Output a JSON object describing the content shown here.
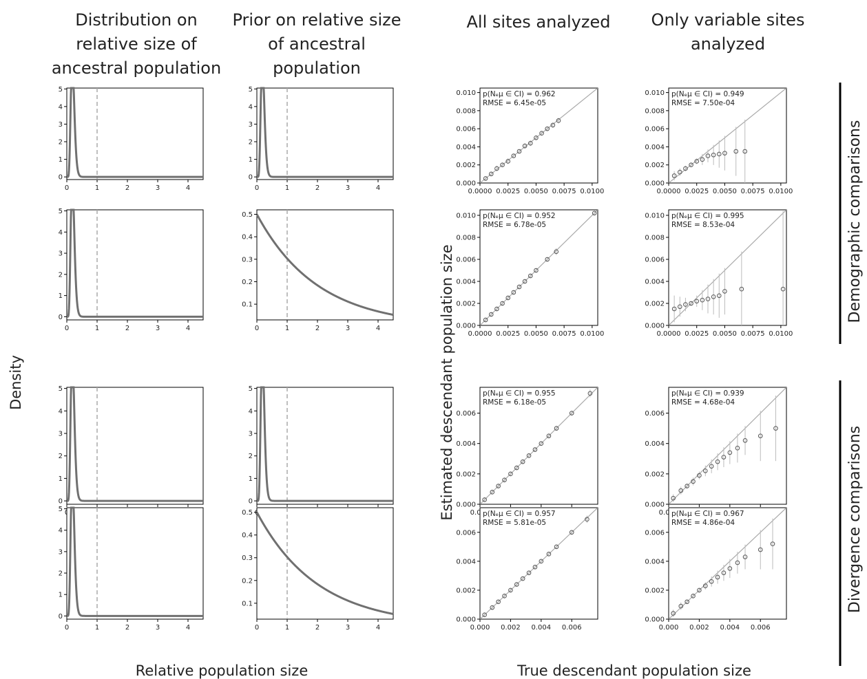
{
  "column_titles": [
    [
      "Distribution on",
      "relative size of",
      "ancestral population"
    ],
    [
      "Prior on relative size",
      "of ancestral",
      "population"
    ],
    [
      "All sites analyzed"
    ],
    [
      "Only variable sites",
      "analyzed"
    ]
  ],
  "row_group_labels": [
    "Demographic comparisons",
    "Divergence comparisons"
  ],
  "axis_labels": {
    "density": "Density",
    "relative_population_size": "Relative population size",
    "estimated_descendant": "Estimated descendant population size",
    "true_descendant": "True descendant population size"
  },
  "annotation_label": "p(Nₑμ ∈ CI) = ",
  "rmse_label": "RMSE = ",
  "colors": {
    "density_line": "#707070",
    "reference_line": "#aaaaaa",
    "scatter_marker": "#555555",
    "error_bar": "#bbbbbb",
    "identity_line": "#aaaaaa"
  },
  "chart_data": [
    {
      "type": "line",
      "id": "dist-r1",
      "distribution": "gamma",
      "shape": 10,
      "scale": 0.02,
      "xlim": [
        0,
        4.5
      ],
      "ylim": [
        -0.15,
        5.05
      ],
      "xticks": [
        0,
        1,
        2,
        3,
        4
      ],
      "yticks": [
        0,
        1,
        2,
        3,
        4,
        5
      ],
      "reference_x": 1
    },
    {
      "type": "line",
      "id": "prior-r1",
      "distribution": "gamma",
      "shape": 10,
      "scale": 0.02,
      "xlim": [
        0,
        4.5
      ],
      "ylim": [
        -0.15,
        5.05
      ],
      "xticks": [
        0,
        1,
        2,
        3,
        4
      ],
      "yticks": [
        0,
        1,
        2,
        3,
        4,
        5
      ],
      "reference_x": 1
    },
    {
      "type": "line",
      "id": "dist-r2",
      "distribution": "gamma",
      "shape": 10,
      "scale": 0.02,
      "xlim": [
        0,
        4.5
      ],
      "ylim": [
        -0.15,
        5.05
      ],
      "xticks": [
        0,
        1,
        2,
        3,
        4
      ],
      "yticks": [
        0,
        1,
        2,
        3,
        4,
        5
      ],
      "reference_x": 1
    },
    {
      "type": "line",
      "id": "prior-r2",
      "distribution": "exponential",
      "mean": 2.0,
      "xlim": [
        0,
        4.5
      ],
      "ylim": [
        0.03,
        0.52
      ],
      "xticks": [
        0,
        1,
        2,
        3,
        4
      ],
      "yticks": [
        0.1,
        0.2,
        0.3,
        0.4,
        0.5
      ],
      "reference_x": 1
    },
    {
      "type": "line",
      "id": "dist-r3",
      "distribution": "gamma",
      "shape": 10,
      "scale": 0.02,
      "xlim": [
        0,
        4.5
      ],
      "ylim": [
        -0.15,
        5.05
      ],
      "xticks": [
        0,
        1,
        2,
        3,
        4
      ],
      "yticks": [
        0,
        1,
        2,
        3,
        4,
        5
      ],
      "reference_x": 1
    },
    {
      "type": "line",
      "id": "prior-r3",
      "distribution": "gamma",
      "shape": 10,
      "scale": 0.02,
      "xlim": [
        0,
        4.5
      ],
      "ylim": [
        -0.15,
        5.05
      ],
      "xticks": [
        0,
        1,
        2,
        3,
        4
      ],
      "yticks": [
        0,
        1,
        2,
        3,
        4,
        5
      ],
      "reference_x": 1
    },
    {
      "type": "line",
      "id": "dist-r4",
      "distribution": "gamma",
      "shape": 10,
      "scale": 0.02,
      "xlim": [
        0,
        4.5
      ],
      "ylim": [
        -0.15,
        5.05
      ],
      "xticks": [
        0,
        1,
        2,
        3,
        4
      ],
      "yticks": [
        0,
        1,
        2,
        3,
        4,
        5
      ],
      "reference_x": 1
    },
    {
      "type": "line",
      "id": "prior-r4",
      "distribution": "exponential",
      "mean": 2.0,
      "xlim": [
        0,
        4.5
      ],
      "ylim": [
        0.03,
        0.52
      ],
      "xticks": [
        0,
        1,
        2,
        3,
        4
      ],
      "yticks": [
        0.1,
        0.2,
        0.3,
        0.4,
        0.5
      ],
      "reference_x": 1
    },
    {
      "type": "scatter",
      "id": "all-r1",
      "lim": [
        0,
        0.0105
      ],
      "ticks": [
        0,
        0.0025,
        0.005,
        0.0075,
        0.01
      ],
      "yticks": [
        0,
        0.002,
        0.004,
        0.006,
        0.008,
        0.01
      ],
      "xtick_labels": [
        "0.0000",
        "0.0025",
        "0.0050",
        "0.0075",
        "0.0100"
      ],
      "ytick_labels": [
        "0.000",
        "0.002",
        "0.004",
        "0.006",
        "0.008",
        "0.010"
      ],
      "coverage": "0.962",
      "rmse": "6.45e-05",
      "points": [
        [
          0.0005,
          0.0005
        ],
        [
          0.001,
          0.001
        ],
        [
          0.0015,
          0.0016
        ],
        [
          0.002,
          0.002
        ],
        [
          0.0025,
          0.0024
        ],
        [
          0.003,
          0.003
        ],
        [
          0.0035,
          0.0035
        ],
        [
          0.004,
          0.0041
        ],
        [
          0.0045,
          0.0044
        ],
        [
          0.005,
          0.005
        ],
        [
          0.0055,
          0.0055
        ],
        [
          0.006,
          0.006
        ],
        [
          0.0065,
          0.0064
        ],
        [
          0.007,
          0.0069
        ]
      ]
    },
    {
      "type": "scatter",
      "id": "var-r1",
      "lim": [
        0,
        0.0105
      ],
      "ticks": [
        0,
        0.0025,
        0.005,
        0.0075,
        0.01
      ],
      "yticks": [
        0,
        0.002,
        0.004,
        0.006,
        0.008,
        0.01
      ],
      "xtick_labels": [
        "0.0000",
        "0.0025",
        "0.0050",
        "0.0075",
        "0.0100"
      ],
      "ytick_labels": [
        "0.000",
        "0.002",
        "0.004",
        "0.006",
        "0.008",
        "0.010"
      ],
      "coverage": "0.949",
      "rmse": "7.50e-04",
      "points": [
        [
          0.0005,
          0.0008
        ],
        [
          0.001,
          0.0012
        ],
        [
          0.0015,
          0.0016
        ],
        [
          0.002,
          0.002
        ],
        [
          0.0025,
          0.0024
        ],
        [
          0.003,
          0.0026
        ],
        [
          0.0035,
          0.003
        ],
        [
          0.004,
          0.0031
        ],
        [
          0.0045,
          0.0032
        ],
        [
          0.005,
          0.0033
        ],
        [
          0.006,
          0.0035
        ],
        [
          0.0068,
          0.0035
        ]
      ]
    },
    {
      "type": "scatter",
      "id": "all-r2",
      "lim": [
        0,
        0.0105
      ],
      "ticks": [
        0,
        0.0025,
        0.005,
        0.0075,
        0.01
      ],
      "yticks": [
        0,
        0.002,
        0.004,
        0.006,
        0.008,
        0.01
      ],
      "xtick_labels": [
        "0.0000",
        "0.0025",
        "0.0050",
        "0.0075",
        "0.0100"
      ],
      "ytick_labels": [
        "0.000",
        "0.002",
        "0.004",
        "0.006",
        "0.008",
        "0.010"
      ],
      "coverage": "0.952",
      "rmse": "6.78e-05",
      "points": [
        [
          0.0005,
          0.0005
        ],
        [
          0.001,
          0.001
        ],
        [
          0.0015,
          0.0015
        ],
        [
          0.002,
          0.002
        ],
        [
          0.0025,
          0.0025
        ],
        [
          0.003,
          0.003
        ],
        [
          0.0035,
          0.0035
        ],
        [
          0.004,
          0.004
        ],
        [
          0.0045,
          0.0045
        ],
        [
          0.005,
          0.005
        ],
        [
          0.006,
          0.006
        ],
        [
          0.0068,
          0.0067
        ],
        [
          0.0102,
          0.0102
        ]
      ]
    },
    {
      "type": "scatter",
      "id": "var-r2",
      "lim": [
        0,
        0.0105
      ],
      "ticks": [
        0,
        0.0025,
        0.005,
        0.0075,
        0.01
      ],
      "yticks": [
        0,
        0.002,
        0.004,
        0.006,
        0.008,
        0.01
      ],
      "xtick_labels": [
        "0.0000",
        "0.0025",
        "0.0050",
        "0.0075",
        "0.0100"
      ],
      "ytick_labels": [
        "0.000",
        "0.002",
        "0.004",
        "0.006",
        "0.008",
        "0.010"
      ],
      "coverage": "0.995",
      "rmse": "8.53e-04",
      "points": [
        [
          0.0005,
          0.0015
        ],
        [
          0.001,
          0.0017
        ],
        [
          0.0015,
          0.0019
        ],
        [
          0.002,
          0.002
        ],
        [
          0.0025,
          0.0022
        ],
        [
          0.003,
          0.0023
        ],
        [
          0.0035,
          0.0024
        ],
        [
          0.004,
          0.0026
        ],
        [
          0.0045,
          0.0027
        ],
        [
          0.005,
          0.0031
        ],
        [
          0.0065,
          0.0033
        ],
        [
          0.0102,
          0.0033
        ]
      ]
    },
    {
      "type": "scatter",
      "id": "all-r3",
      "lim": [
        0,
        0.0077
      ],
      "ticks": [
        0,
        0.002,
        0.004,
        0.006
      ],
      "yticks": [
        0,
        0.002,
        0.004,
        0.006
      ],
      "xtick_labels": [
        "0.000",
        "0.002",
        "0.004",
        "0.006"
      ],
      "ytick_labels": [
        "0.000",
        "0.002",
        "0.004",
        "0.006"
      ],
      "coverage": "0.955",
      "rmse": "6.18e-05",
      "points": [
        [
          0.0003,
          0.0003
        ],
        [
          0.0008,
          0.0008
        ],
        [
          0.0012,
          0.0012
        ],
        [
          0.0016,
          0.0016
        ],
        [
          0.002,
          0.002
        ],
        [
          0.0024,
          0.0024
        ],
        [
          0.0028,
          0.0028
        ],
        [
          0.0032,
          0.0032
        ],
        [
          0.0036,
          0.0036
        ],
        [
          0.004,
          0.004
        ],
        [
          0.0045,
          0.0045
        ],
        [
          0.005,
          0.005
        ],
        [
          0.006,
          0.006
        ],
        [
          0.0072,
          0.0073
        ]
      ]
    },
    {
      "type": "scatter",
      "id": "var-r3",
      "lim": [
        0,
        0.0077
      ],
      "ticks": [
        0,
        0.002,
        0.004,
        0.006
      ],
      "yticks": [
        0,
        0.002,
        0.004,
        0.006
      ],
      "xtick_labels": [
        "0.000",
        "0.002",
        "0.004",
        "0.006"
      ],
      "ytick_labels": [
        "0.000",
        "0.002",
        "0.004",
        "0.006"
      ],
      "coverage": "0.939",
      "rmse": "4.68e-04",
      "points": [
        [
          0.0003,
          0.0004
        ],
        [
          0.0008,
          0.0009
        ],
        [
          0.0012,
          0.0012
        ],
        [
          0.0016,
          0.0015
        ],
        [
          0.002,
          0.0019
        ],
        [
          0.0024,
          0.0022
        ],
        [
          0.0028,
          0.0025
        ],
        [
          0.0032,
          0.0028
        ],
        [
          0.0036,
          0.0031
        ],
        [
          0.004,
          0.0034
        ],
        [
          0.0045,
          0.0037
        ],
        [
          0.005,
          0.0042
        ],
        [
          0.006,
          0.0045
        ],
        [
          0.007,
          0.005
        ]
      ]
    },
    {
      "type": "scatter",
      "id": "all-r4",
      "lim": [
        0,
        0.0077
      ],
      "ticks": [
        0,
        0.002,
        0.004,
        0.006
      ],
      "yticks": [
        0,
        0.002,
        0.004,
        0.006
      ],
      "xtick_labels": [
        "0.000",
        "0.002",
        "0.004",
        "0.006"
      ],
      "ytick_labels": [
        "0.000",
        "0.002",
        "0.004",
        "0.006"
      ],
      "coverage": "0.957",
      "rmse": "5.81e-05",
      "points": [
        [
          0.0003,
          0.0003
        ],
        [
          0.0008,
          0.0008
        ],
        [
          0.0012,
          0.0012
        ],
        [
          0.0016,
          0.0016
        ],
        [
          0.002,
          0.002
        ],
        [
          0.0024,
          0.0024
        ],
        [
          0.0028,
          0.0028
        ],
        [
          0.0032,
          0.0032
        ],
        [
          0.0036,
          0.0036
        ],
        [
          0.004,
          0.004
        ],
        [
          0.0045,
          0.0045
        ],
        [
          0.005,
          0.005
        ],
        [
          0.006,
          0.006
        ],
        [
          0.007,
          0.0069
        ]
      ]
    },
    {
      "type": "scatter",
      "id": "var-r4",
      "lim": [
        0,
        0.0077
      ],
      "ticks": [
        0,
        0.002,
        0.004,
        0.006
      ],
      "yticks": [
        0,
        0.002,
        0.004,
        0.006
      ],
      "xtick_labels": [
        "0.000",
        "0.002",
        "0.004",
        "0.006"
      ],
      "ytick_labels": [
        "0.000",
        "0.002",
        "0.004",
        "0.006"
      ],
      "coverage": "0.967",
      "rmse": "4.86e-04",
      "points": [
        [
          0.0003,
          0.0004
        ],
        [
          0.0008,
          0.0009
        ],
        [
          0.0012,
          0.0012
        ],
        [
          0.0016,
          0.0016
        ],
        [
          0.002,
          0.002
        ],
        [
          0.0024,
          0.0023
        ],
        [
          0.0028,
          0.0026
        ],
        [
          0.0032,
          0.0029
        ],
        [
          0.0036,
          0.0032
        ],
        [
          0.004,
          0.0035
        ],
        [
          0.0045,
          0.0039
        ],
        [
          0.005,
          0.0043
        ],
        [
          0.006,
          0.0048
        ],
        [
          0.0068,
          0.0052
        ]
      ]
    }
  ]
}
